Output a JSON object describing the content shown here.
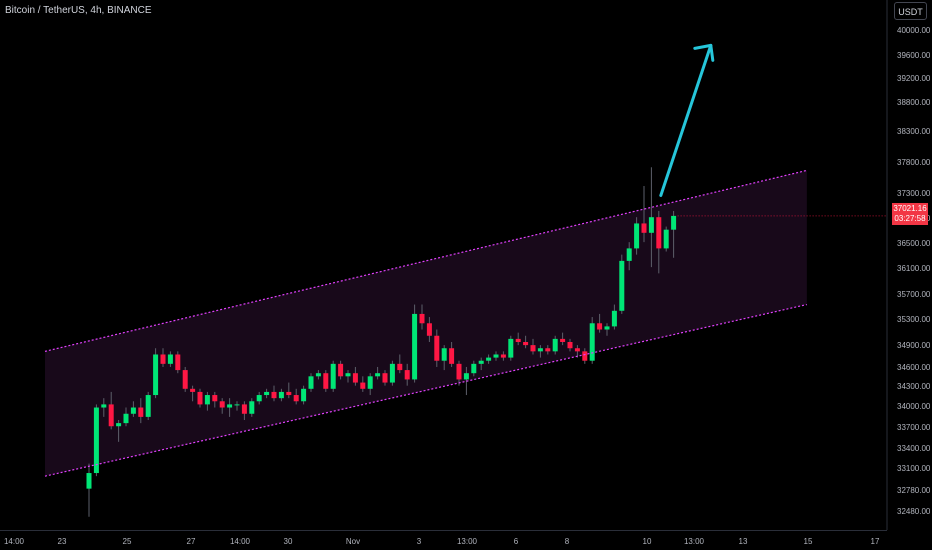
{
  "header": {
    "symbol_title": "Bitcoin / TetherUS, 4h, BINANCE"
  },
  "toolbar": {
    "currency": "USDT"
  },
  "price_tag": {
    "price": "37021.16",
    "countdown": "03:27:58"
  },
  "colors": {
    "background": "#000000",
    "up": "#00e676",
    "down": "#ff1744",
    "wick": "#5d606b",
    "channel_line": "#e040fb",
    "channel_fill": "#1c0a1e",
    "arrow": "#26c6da",
    "axis_text": "#b2b5be",
    "axis_line": "#2a2e39"
  },
  "chart_data": {
    "type": "candlestick",
    "title": "Bitcoin / TetherUS, 4h, BINANCE",
    "ylim": [
      32200,
      40200
    ],
    "y_ticks": [
      "40000.00",
      "39600.00",
      "39200.00",
      "38800.00",
      "38300.00",
      "37800.00",
      "37300.00",
      "36900.00",
      "36500.00",
      "36100.00",
      "35700.00",
      "35300.00",
      "34900.00",
      "34600.00",
      "34300.00",
      "34000.00",
      "33700.00",
      "33400.00",
      "33100.00",
      "32780.00",
      "32480.00"
    ],
    "x_ticks": [
      "14:00",
      "23",
      "25",
      "27",
      "14:00",
      "30",
      "Nov",
      "3",
      "13:00",
      "6",
      "8",
      "10",
      "13:00",
      "13",
      "15",
      "17"
    ],
    "candles": [
      [
        32650,
        33050,
        32200,
        32900
      ],
      [
        32900,
        34000,
        32850,
        33950
      ],
      [
        33950,
        34100,
        33800,
        34000
      ],
      [
        34000,
        34200,
        33600,
        33650
      ],
      [
        33650,
        33750,
        33400,
        33700
      ],
      [
        33700,
        33950,
        33650,
        33850
      ],
      [
        33850,
        34050,
        33800,
        33950
      ],
      [
        33950,
        34100,
        33700,
        33800
      ],
      [
        33800,
        34200,
        33750,
        34150
      ],
      [
        34150,
        34900,
        34100,
        34800
      ],
      [
        34800,
        34900,
        34600,
        34650
      ],
      [
        34650,
        34850,
        34600,
        34800
      ],
      [
        34800,
        34850,
        34500,
        34550
      ],
      [
        34550,
        34600,
        34200,
        34250
      ],
      [
        34250,
        34300,
        34050,
        34200
      ],
      [
        34200,
        34250,
        33950,
        34000
      ],
      [
        34000,
        34200,
        33900,
        34150
      ],
      [
        34150,
        34200,
        33950,
        34050
      ],
      [
        34050,
        34100,
        33850,
        33950
      ],
      [
        33950,
        34100,
        33800,
        34000
      ],
      [
        34000,
        34050,
        33900,
        34000
      ],
      [
        34000,
        34050,
        33750,
        33850
      ],
      [
        33850,
        34100,
        33800,
        34050
      ],
      [
        34050,
        34200,
        34000,
        34150
      ],
      [
        34150,
        34250,
        34100,
        34200
      ],
      [
        34200,
        34300,
        34050,
        34100
      ],
      [
        34100,
        34250,
        34050,
        34200
      ],
      [
        34200,
        34350,
        34100,
        34150
      ],
      [
        34150,
        34250,
        34000,
        34050
      ],
      [
        34050,
        34300,
        34000,
        34250
      ],
      [
        34250,
        34500,
        34200,
        34450
      ],
      [
        34450,
        34550,
        34400,
        34500
      ],
      [
        34500,
        34550,
        34200,
        34250
      ],
      [
        34250,
        34700,
        34200,
        34650
      ],
      [
        34650,
        34700,
        34400,
        34450
      ],
      [
        34450,
        34550,
        34350,
        34500
      ],
      [
        34500,
        34600,
        34300,
        34350
      ],
      [
        34350,
        34450,
        34200,
        34250
      ],
      [
        34250,
        34500,
        34150,
        34450
      ],
      [
        34450,
        34600,
        34400,
        34500
      ],
      [
        34500,
        34550,
        34300,
        34350
      ],
      [
        34350,
        34700,
        34300,
        34650
      ],
      [
        34650,
        34800,
        34500,
        34550
      ],
      [
        34550,
        34650,
        34300,
        34400
      ],
      [
        34400,
        35600,
        34350,
        35450
      ],
      [
        35450,
        35600,
        35200,
        35300
      ],
      [
        35300,
        35400,
        35000,
        35100
      ],
      [
        35100,
        35200,
        34600,
        34700
      ],
      [
        34700,
        34950,
        34550,
        34900
      ],
      [
        34900,
        35000,
        34600,
        34650
      ],
      [
        34650,
        34700,
        34300,
        34400
      ],
      [
        34400,
        34600,
        34150,
        34500
      ],
      [
        34500,
        34700,
        34450,
        34650
      ],
      [
        34650,
        34750,
        34550,
        34700
      ],
      [
        34700,
        34800,
        34650,
        34750
      ],
      [
        34750,
        34850,
        34700,
        34800
      ],
      [
        34800,
        34850,
        34700,
        34750
      ],
      [
        34750,
        35100,
        34700,
        35050
      ],
      [
        35050,
        35150,
        34950,
        35000
      ],
      [
        35000,
        35100,
        34900,
        34950
      ],
      [
        34950,
        35050,
        34800,
        34850
      ],
      [
        34850,
        34950,
        34750,
        34900
      ],
      [
        34900,
        34950,
        34800,
        34850
      ],
      [
        34850,
        35100,
        34800,
        35050
      ],
      [
        35050,
        35150,
        34950,
        35000
      ],
      [
        35000,
        35050,
        34850,
        34900
      ],
      [
        34900,
        34950,
        34750,
        34850
      ],
      [
        34850,
        34900,
        34650,
        34700
      ],
      [
        34700,
        35400,
        34650,
        35300
      ],
      [
        35300,
        35450,
        35150,
        35200
      ],
      [
        35200,
        35300,
        35100,
        35250
      ],
      [
        35250,
        35600,
        35200,
        35500
      ],
      [
        35500,
        36400,
        35450,
        36300
      ],
      [
        36300,
        36600,
        36150,
        36500
      ],
      [
        36500,
        37000,
        36400,
        36900
      ],
      [
        36900,
        37500,
        36600,
        36750
      ],
      [
        36750,
        37800,
        36200,
        37000
      ],
      [
        37000,
        37100,
        36100,
        36500
      ],
      [
        36500,
        36850,
        36450,
        36800
      ],
      [
        36800,
        37100,
        36350,
        37021
      ]
    ],
    "channel": {
      "upper": {
        "start": [
          0,
          34850
        ],
        "end": [
          89,
          37750
        ]
      },
      "lower": {
        "start": [
          0,
          32850
        ],
        "end": [
          89,
          35600
        ]
      }
    },
    "arrow": {
      "from": [
        77,
        37300
      ],
      "to": [
        82,
        39850
      ]
    },
    "last_price": 37021.16
  }
}
